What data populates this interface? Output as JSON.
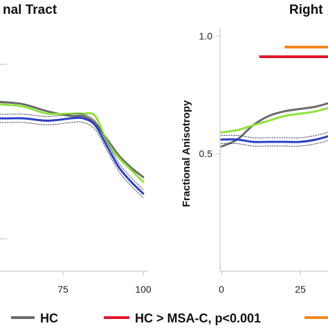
{
  "colors": {
    "hc": "#6b6b6b",
    "msa_c": "#2a3fc9",
    "green": "#8fe33a",
    "sig_red": "#e3162b",
    "sig_orange": "#f08a1c",
    "ci_dots": "#3a3a5a",
    "axis": "#bdbdbd"
  },
  "chart_data": [
    {
      "type": "line",
      "title": "nal Tract",
      "x_ticks": [
        "75",
        "100"
      ],
      "xlim": [
        0,
        100
      ],
      "ylim": [
        0.0,
        1.0
      ],
      "series": [
        {
          "name": "HC",
          "color_key": "hc",
          "x": [
            0,
            10,
            20,
            30,
            40,
            50,
            60,
            70,
            75,
            80,
            85,
            90,
            95,
            100
          ],
          "y": [
            0.72,
            0.72,
            0.73,
            0.73,
            0.72,
            0.71,
            0.68,
            0.66,
            0.66,
            0.63,
            0.56,
            0.49,
            0.44,
            0.4
          ]
        },
        {
          "name": "",
          "color_key": "green",
          "x": [
            0,
            10,
            20,
            30,
            40,
            50,
            60,
            70,
            75,
            80,
            85,
            90,
            95,
            100
          ],
          "y": [
            0.71,
            0.71,
            0.72,
            0.72,
            0.71,
            0.7,
            0.67,
            0.67,
            0.67,
            0.66,
            0.55,
            0.48,
            0.43,
            0.38
          ]
        },
        {
          "name": "",
          "color_key": "msa_c",
          "x": [
            0,
            10,
            20,
            30,
            40,
            50,
            60,
            70,
            75,
            80,
            85,
            90,
            95,
            100
          ],
          "y": [
            0.65,
            0.66,
            0.66,
            0.66,
            0.65,
            0.65,
            0.64,
            0.65,
            0.65,
            0.62,
            0.53,
            0.44,
            0.38,
            0.33
          ]
        }
      ]
    },
    {
      "type": "line",
      "title": "Right",
      "ylabel": "Fractional Anisotropy",
      "y_ticks": [
        "1.0",
        "0.5"
      ],
      "x_ticks": [
        "0",
        "25"
      ],
      "xlim": [
        0,
        100
      ],
      "ylim": [
        0.0,
        1.0
      ],
      "significance_bars": [
        {
          "label": "HC > MSA-C, p<0.001",
          "color_key": "sig_red",
          "x_range": [
            12,
            100
          ]
        },
        {
          "label": "",
          "color_key": "sig_orange",
          "x_range": [
            20,
            100
          ]
        }
      ],
      "series": [
        {
          "name": "HC",
          "color_key": "hc",
          "x": [
            0,
            5,
            10,
            15,
            20,
            25,
            30,
            35,
            40,
            45
          ],
          "y": [
            0.53,
            0.56,
            0.62,
            0.66,
            0.68,
            0.69,
            0.7,
            0.72,
            0.75,
            0.78
          ]
        },
        {
          "name": "",
          "color_key": "green",
          "x": [
            0,
            5,
            10,
            15,
            20,
            25,
            30,
            35,
            40,
            45
          ],
          "y": [
            0.59,
            0.6,
            0.62,
            0.64,
            0.66,
            0.67,
            0.68,
            0.7,
            0.73,
            0.76
          ]
        },
        {
          "name": "",
          "color_key": "msa_c",
          "x": [
            0,
            5,
            10,
            15,
            20,
            25,
            30,
            35,
            40,
            45
          ],
          "y": [
            0.56,
            0.56,
            0.55,
            0.55,
            0.55,
            0.55,
            0.56,
            0.58,
            0.62,
            0.66
          ]
        }
      ]
    }
  ],
  "legend": {
    "items": [
      {
        "label": "HC",
        "color_key": "hc"
      },
      {
        "label": "HC > MSA-C,  p<0.001",
        "color_key": "sig_red"
      },
      {
        "label": "",
        "color_key": "sig_orange"
      }
    ]
  }
}
